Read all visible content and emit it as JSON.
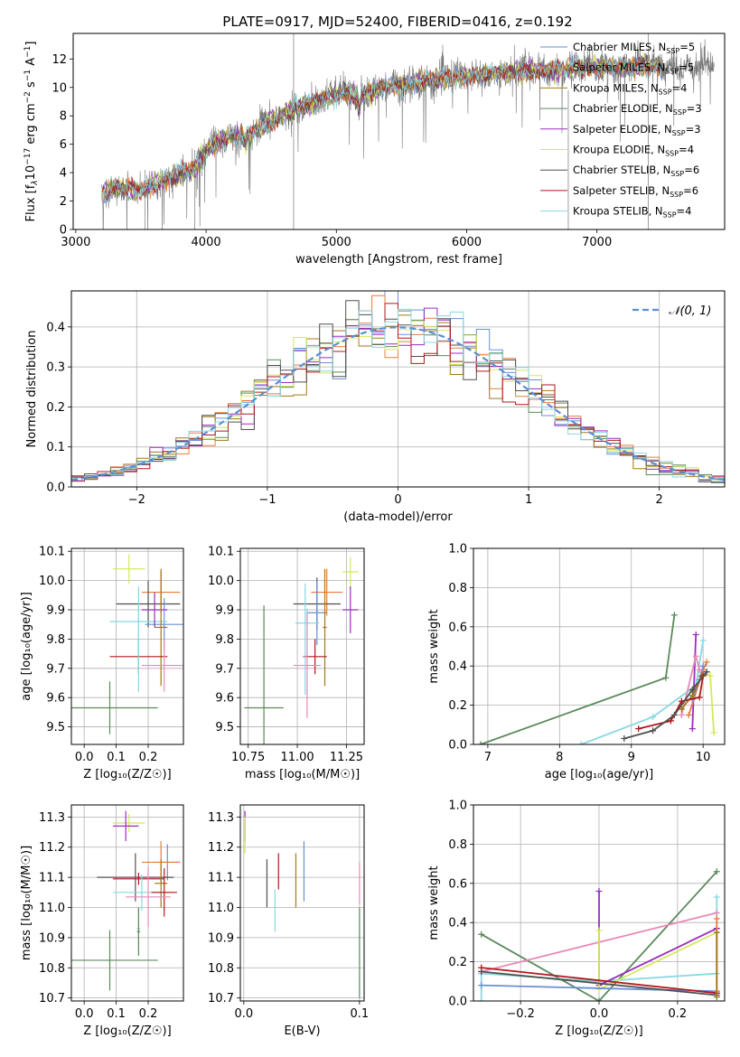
{
  "figure_title": "PLATE=0917, MJD=52400, FIBERID=0416, z=0.192",
  "colors": {
    "chabrier_miles": "#6a8fd6",
    "salpeter_miles": "#e87c3e",
    "kroupa_miles": "#a07a18",
    "chabrier_elodie": "#5c8a5c",
    "salpeter_elodie": "#9a2dbf",
    "kroupa_elodie": "#d4e85a",
    "chabrier_stelib": "#505050",
    "salpeter_stelib": "#b0181c",
    "kroupa_stelib": "#88d8e0",
    "pink": "#e88ab8",
    "gauss": "#5a8ed6"
  },
  "chart_data": [
    {
      "id": "spectrum",
      "type": "line",
      "xlabel": "wavelength [Angstrom, rest frame]",
      "ylabel_parts": [
        "Flux [f",
        "λ",
        "10",
        "−17",
        " erg cm",
        "−2",
        " s",
        "−1",
        " A",
        "−1",
        "]"
      ],
      "xlim": [
        2980,
        7980
      ],
      "ylim": [
        0,
        13.8
      ],
      "xticks": [
        3000,
        4000,
        5000,
        6000,
        7000
      ],
      "yticks": [
        0,
        2,
        4,
        6,
        8,
        10,
        12
      ],
      "grid": false,
      "legend_location": "upper-right",
      "legend": [
        {
          "label": "Chabrier MILES, N",
          "sub": "SSP",
          "value": "=5",
          "color_key": "chabrier_miles"
        },
        {
          "label": "Salpeter MILES, N",
          "sub": "SSP",
          "value": "=5",
          "color_key": "salpeter_miles"
        },
        {
          "label": "Kroupa MILES, N",
          "sub": "SSP",
          "value": "=4",
          "color_key": "kroupa_miles"
        },
        {
          "label": "Chabrier ELODIE, N",
          "sub": "SSP",
          "value": "=3",
          "color_key": "chabrier_elodie"
        },
        {
          "label": "Salpeter ELODIE, N",
          "sub": "SSP",
          "value": "=3",
          "color_key": "salpeter_elodie"
        },
        {
          "label": "Kroupa ELODIE, N",
          "sub": "SSP",
          "value": "=4",
          "color_key": "kroupa_elodie"
        },
        {
          "label": "Chabrier STELIB, N",
          "sub": "SSP",
          "value": "=6",
          "color_key": "chabrier_stelib"
        },
        {
          "label": "Salpeter STELIB, N",
          "sub": "SSP",
          "value": "=6",
          "color_key": "salpeter_stelib"
        },
        {
          "label": "Kroupa STELIB, N",
          "sub": "SSP",
          "value": "=4",
          "color_key": "kroupa_stelib"
        }
      ],
      "continuum": {
        "x": [
          3200,
          3250,
          3300,
          3400,
          3500,
          3600,
          3700,
          3800,
          3900,
          4000,
          4100,
          4200,
          4300,
          4400,
          4500,
          4600,
          4700,
          4800,
          4900,
          5000,
          5100,
          5200,
          5300,
          5400,
          5500,
          5600,
          5700,
          5800,
          5900,
          6000,
          6100,
          6200,
          6300,
          6400,
          6500,
          6600,
          6700,
          6800,
          6900,
          7000,
          7100,
          7200,
          7300,
          7400
        ],
        "y": [
          2.5,
          2.8,
          2.9,
          2.8,
          2.7,
          3.2,
          3.6,
          3.9,
          4.2,
          5.5,
          6.2,
          6.6,
          6.5,
          7.0,
          7.6,
          8.2,
          8.6,
          8.8,
          9.2,
          9.5,
          9.6,
          9.5,
          9.8,
          10.0,
          10.2,
          10.4,
          10.5,
          10.6,
          10.7,
          10.8,
          10.9,
          11.0,
          11.0,
          11.1,
          11.2,
          11.2,
          11.2,
          11.3,
          11.4,
          11.4,
          11.5,
          11.4,
          11.5,
          11.5
        ]
      }
    },
    {
      "id": "residuals",
      "type": "histogram",
      "xlabel": "(data-model)/error",
      "ylabel": "Normed distribution",
      "xlim": [
        -2.5,
        2.5
      ],
      "ylim": [
        0,
        0.49
      ],
      "xticks": [
        -2,
        -1,
        0,
        1,
        2
      ],
      "yticks": [
        0.0,
        0.1,
        0.2,
        0.3,
        0.4
      ],
      "grid": true,
      "legend_location": "upper-right",
      "gaussian_label": "𝒩(0, 1)",
      "bin_width": 0.1,
      "bin_start": -2.5
    },
    {
      "id": "age_vs_Z",
      "type": "errorbar",
      "xlabel": "Z [log₁₀(Z/Z☉)]",
      "ylabel": "age  [log₁₀(age/yr)]",
      "xlim": [
        -0.04,
        0.31
      ],
      "ylim": [
        9.44,
        10.11
      ],
      "xticks": [
        0.0,
        0.1,
        0.2
      ],
      "yticks": [
        9.5,
        9.6,
        9.7,
        9.8,
        9.9,
        10.0,
        10.1
      ],
      "grid": true,
      "points": [
        {
          "x": 0.14,
          "xerr": 0.05,
          "y": 10.04,
          "yerr": 0.05,
          "c": "kroupa_elodie"
        },
        {
          "x": 0.24,
          "xerr": 0.06,
          "y": 9.96,
          "yerr": 0.07,
          "c": "salpeter_miles"
        },
        {
          "x": 0.2,
          "xerr": 0.1,
          "y": 9.92,
          "yerr": 0.08,
          "c": "chabrier_stelib"
        },
        {
          "x": 0.25,
          "xerr": 0.06,
          "y": 9.85,
          "yerr": 0.09,
          "c": "chabrier_miles"
        },
        {
          "x": 0.17,
          "xerr": 0.09,
          "y": 9.86,
          "yerr": 0.06,
          "c": "kroupa_stelib"
        },
        {
          "x": 0.22,
          "xerr": 0.04,
          "y": 9.9,
          "yerr": 0.06,
          "c": "salpeter_elodie"
        },
        {
          "x": 0.24,
          "xerr": 0.02,
          "y": 9.84,
          "yerr": 0.2,
          "c": "kroupa_miles"
        },
        {
          "x": 0.17,
          "xerr": 0.09,
          "y": 9.74,
          "yerr": 0.06,
          "c": "salpeter_stelib"
        },
        {
          "x": 0.25,
          "xerr": 0.07,
          "y": 9.71,
          "yerr": 0.09,
          "c": "pink"
        },
        {
          "x": 0.17,
          "xerr": 0.005,
          "y": 9.8,
          "yerr": 0.18,
          "c": "kroupa_stelib"
        },
        {
          "x": 0.08,
          "xerr": 0.15,
          "y": 9.565,
          "yerr": 0.09,
          "c": "chabrier_elodie"
        }
      ]
    },
    {
      "id": "age_vs_mass",
      "type": "errorbar",
      "xlabel": "mass [log₁₀(M/M☉)]",
      "ylabel": "",
      "xlim": [
        10.71,
        11.34
      ],
      "ylim": [
        9.44,
        10.11
      ],
      "xticks": [
        10.75,
        11.0,
        11.25
      ],
      "yticks": [
        9.5,
        9.6,
        9.7,
        9.8,
        9.9,
        10.0,
        10.1
      ],
      "grid": true,
      "points": [
        {
          "x": 11.27,
          "xerr": 0.04,
          "y": 10.03,
          "yerr": 0.05,
          "c": "kroupa_elodie"
        },
        {
          "x": 11.15,
          "xerr": 0.08,
          "y": 9.96,
          "yerr": 0.08,
          "c": "salpeter_miles"
        },
        {
          "x": 11.1,
          "xerr": 0.12,
          "y": 9.92,
          "yerr": 0.09,
          "c": "chabrier_stelib"
        },
        {
          "x": 11.1,
          "xerr": 0.05,
          "y": 9.89,
          "yerr": 0.11,
          "c": "chabrier_miles"
        },
        {
          "x": 11.05,
          "xerr": 0.06,
          "y": 9.855,
          "yerr": 0.05,
          "c": "kroupa_stelib"
        },
        {
          "x": 11.27,
          "xerr": 0.04,
          "y": 9.9,
          "yerr": 0.08,
          "c": "salpeter_elodie"
        },
        {
          "x": 11.14,
          "xerr": 0.01,
          "y": 9.84,
          "yerr": 0.2,
          "c": "kroupa_miles"
        },
        {
          "x": 11.09,
          "xerr": 0.06,
          "y": 9.74,
          "yerr": 0.06,
          "c": "salpeter_stelib"
        },
        {
          "x": 11.05,
          "xerr": 0.07,
          "y": 9.71,
          "yerr": 0.18,
          "c": "pink"
        },
        {
          "x": 11.04,
          "xerr": 0.005,
          "y": 9.8,
          "yerr": 0.19,
          "c": "kroupa_stelib"
        },
        {
          "x": 10.83,
          "xerr": 0.1,
          "y": 9.565,
          "yerr": 0.35,
          "c": "chabrier_elodie"
        }
      ]
    },
    {
      "id": "weight_vs_age",
      "type": "line",
      "xlabel": "age  [log₁₀(age/yr)]",
      "ylabel": "mass weight",
      "xlim": [
        6.8,
        10.3
      ],
      "ylim": [
        0,
        1.0
      ],
      "xticks": [
        7,
        8,
        9,
        10
      ],
      "yticks": [
        0.0,
        0.2,
        0.4,
        0.6,
        0.8,
        1.0
      ],
      "grid": true,
      "series": [
        {
          "c": "chabrier_elodie",
          "x": [
            6.9,
            9.48,
            9.6
          ],
          "y": [
            0.0,
            0.34,
            0.66
          ]
        },
        {
          "c": "kroupa_stelib",
          "x": [
            8.3,
            9.3,
            9.9,
            10.0
          ],
          "y": [
            0.0,
            0.14,
            0.3,
            0.53
          ]
        },
        {
          "c": "salpeter_elodie",
          "x": [
            9.85,
            9.9
          ],
          "y": [
            0.08,
            0.56
          ]
        },
        {
          "c": "kroupa_elodie",
          "x": [
            10.0,
            10.1,
            10.15
          ],
          "y": [
            0.36,
            0.35,
            0.06
          ]
        },
        {
          "c": "salpeter_miles",
          "x": [
            9.8,
            10.0,
            10.05
          ],
          "y": [
            0.15,
            0.38,
            0.42
          ]
        },
        {
          "c": "chabrier_miles",
          "x": [
            9.85,
            9.95,
            10.0
          ],
          "y": [
            0.23,
            0.33,
            0.4
          ]
        },
        {
          "c": "pink",
          "x": [
            9.7,
            9.9,
            9.95
          ],
          "y": [
            0.15,
            0.45,
            0.38
          ]
        },
        {
          "c": "kroupa_miles",
          "x": [
            9.7,
            9.85,
            9.98
          ],
          "y": [
            0.18,
            0.25,
            0.35
          ]
        },
        {
          "c": "salpeter_stelib",
          "x": [
            9.1,
            9.55,
            9.7,
            9.95,
            10.0
          ],
          "y": [
            0.08,
            0.12,
            0.22,
            0.24,
            0.35
          ]
        },
        {
          "c": "chabrier_stelib",
          "x": [
            8.9,
            9.3,
            9.6,
            9.85,
            10.05
          ],
          "y": [
            0.03,
            0.07,
            0.15,
            0.28,
            0.37
          ]
        }
      ]
    },
    {
      "id": "mass_vs_Z",
      "type": "errorbar",
      "xlabel": "Z [log₁₀(Z/Z☉)]",
      "ylabel": "mass [log₁₀(M/M☉)]",
      "xlim": [
        -0.04,
        0.31
      ],
      "ylim": [
        10.69,
        11.34
      ],
      "xticks": [
        0.0,
        0.1,
        0.2
      ],
      "yticks": [
        10.7,
        10.8,
        10.9,
        11.0,
        11.1,
        11.2,
        11.3
      ],
      "grid": true,
      "points": [
        {
          "x": 0.14,
          "xerr": 0.05,
          "y": 11.28,
          "yerr": 0.03,
          "c": "kroupa_elodie"
        },
        {
          "x": 0.13,
          "xerr": 0.04,
          "y": 11.27,
          "yerr": 0.05,
          "c": "salpeter_elodie"
        },
        {
          "x": 0.26,
          "xerr": 0.04,
          "y": 11.15,
          "yerr": 0.06,
          "c": "chabrier_miles"
        },
        {
          "x": 0.24,
          "xerr": 0.06,
          "y": 11.15,
          "yerr": 0.07,
          "c": "salpeter_miles"
        },
        {
          "x": 0.16,
          "xerr": 0.12,
          "y": 11.1,
          "yerr": 0.08,
          "c": "chabrier_stelib"
        },
        {
          "x": 0.17,
          "xerr": 0.08,
          "y": 11.095,
          "yerr": 0.02,
          "c": "salpeter_stelib"
        },
        {
          "x": 0.18,
          "xerr": 0.09,
          "y": 11.05,
          "yerr": 0.06,
          "c": "kroupa_stelib"
        },
        {
          "x": 0.24,
          "xerr": 0.02,
          "y": 11.08,
          "yerr": 0.08,
          "c": "kroupa_miles"
        },
        {
          "x": 0.25,
          "xerr": 0.04,
          "y": 11.05,
          "yerr": 0.08,
          "c": "salpeter_stelib"
        },
        {
          "x": 0.2,
          "xerr": 0.07,
          "y": 11.035,
          "yerr": 0.1,
          "c": "pink"
        },
        {
          "x": 0.17,
          "xerr": 0.005,
          "y": 10.93,
          "yerr": 0.07,
          "c": "kroupa_stelib"
        },
        {
          "x": 0.08,
          "xerr": 0.15,
          "y": 10.825,
          "yerr": 0.1,
          "c": "chabrier_elodie"
        },
        {
          "x": 0.17,
          "xerr": 0.005,
          "y": 10.92,
          "yerr": 0.08,
          "c": "chabrier_elodie"
        }
      ]
    },
    {
      "id": "mass_vs_ebv",
      "type": "errorbar",
      "xlabel": "E(B-V)",
      "ylabel": "",
      "xlim": [
        -0.003,
        0.104
      ],
      "ylim": [
        10.69,
        11.34
      ],
      "xticks": [
        0.0,
        0.1
      ],
      "yticks": [
        10.7,
        10.8,
        10.9,
        11.0,
        11.1,
        11.2,
        11.3
      ],
      "grid": true,
      "points": [
        {
          "x": 0.001,
          "xerr": 0,
          "y": 11.27,
          "yerr": 0.05,
          "c": "salpeter_elodie"
        },
        {
          "x": 0.001,
          "xerr": 0,
          "y": 11.24,
          "yerr": 0.06,
          "c": "kroupa_elodie"
        },
        {
          "x": 0.02,
          "xerr": 0,
          "y": 11.08,
          "yerr": 0.08,
          "c": "chabrier_stelib"
        },
        {
          "x": 0.03,
          "xerr": 0,
          "y": 11.12,
          "yerr": 0.06,
          "c": "salpeter_stelib"
        },
        {
          "x": 0.027,
          "xerr": 0,
          "y": 10.99,
          "yerr": 0.07,
          "c": "kroupa_stelib"
        },
        {
          "x": 0.045,
          "xerr": 0,
          "y": 11.09,
          "yerr": 0.09,
          "c": "kroupa_miles"
        },
        {
          "x": 0.052,
          "xerr": 0,
          "y": 11.12,
          "yerr": 0.1,
          "c": "chabrier_miles"
        },
        {
          "x": 0.1,
          "xerr": 0,
          "y": 11.08,
          "yerr": 0.07,
          "c": "pink"
        },
        {
          "x": 0.1,
          "xerr": 0,
          "y": 10.85,
          "yerr": 0.15,
          "c": "chabrier_elodie"
        }
      ]
    },
    {
      "id": "weight_vs_Z",
      "type": "line",
      "xlabel": "Z [log₁₀(Z/Z☉)]",
      "ylabel": "mass weight",
      "xlim": [
        -0.32,
        0.32
      ],
      "ylim": [
        0,
        1.0
      ],
      "xticks": [
        -0.2,
        0.0,
        0.2
      ],
      "yticks": [
        0.0,
        0.2,
        0.4,
        0.6,
        0.8,
        1.0
      ],
      "grid": true,
      "series": [
        {
          "c": "chabrier_elodie",
          "x": [
            -0.3,
            0.0,
            0.3
          ],
          "y": [
            0.34,
            0.0,
            0.66
          ]
        },
        {
          "c": "kroupa_stelib",
          "x": [
            -0.3,
            -0.3,
            0.0,
            0.3,
            0.3
          ],
          "y": [
            0.0,
            0.14,
            0.1,
            0.14,
            0.53
          ]
        },
        {
          "c": "pink",
          "x": [
            -0.3,
            0.3
          ],
          "y": [
            0.15,
            0.45
          ]
        },
        {
          "c": "salpeter_elodie",
          "x": [
            0.0,
            0.0,
            0.3
          ],
          "y": [
            0.56,
            0.08,
            0.37
          ]
        },
        {
          "c": "kroupa_elodie",
          "x": [
            0.0,
            0.0,
            0.3
          ],
          "y": [
            0.36,
            0.06,
            0.35
          ]
        },
        {
          "c": "chabrier_miles",
          "x": [
            -0.3,
            0.3
          ],
          "y": [
            0.08,
            0.05
          ]
        },
        {
          "c": "salpeter_stelib",
          "x": [
            -0.3,
            0.3
          ],
          "y": [
            0.17,
            0.04
          ]
        },
        {
          "c": "chabrier_stelib",
          "x": [
            -0.3,
            0.3
          ],
          "y": [
            0.15,
            0.03
          ]
        },
        {
          "c": "salpeter_miles",
          "x": [
            0.3,
            0.3
          ],
          "y": [
            0.05,
            0.42
          ]
        },
        {
          "c": "kroupa_miles",
          "x": [
            0.3,
            0.3
          ],
          "y": [
            0.02,
            0.35
          ]
        }
      ]
    }
  ]
}
